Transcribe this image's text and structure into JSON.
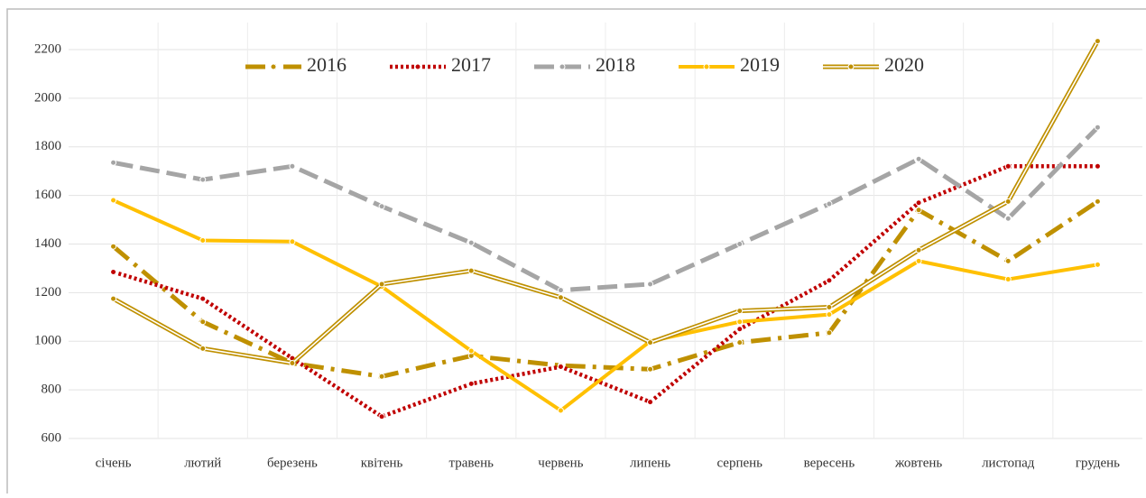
{
  "chart_data": {
    "type": "line",
    "categories": [
      "січень",
      "лютий",
      "березень",
      "квітень",
      "травень",
      "червень",
      "липень",
      "серпень",
      "вересень",
      "жовтень",
      "листопад",
      "грудень"
    ],
    "series": [
      {
        "name": "2016",
        "color": "#bf9000",
        "style": "dashdot",
        "values": [
          1390,
          1080,
          910,
          855,
          940,
          900,
          885,
          995,
          1035,
          1540,
          1330,
          1575
        ]
      },
      {
        "name": "2017",
        "color": "#c00000",
        "style": "dotted",
        "values": [
          1285,
          1175,
          930,
          690,
          825,
          895,
          750,
          1050,
          1250,
          1570,
          1720,
          1720
        ]
      },
      {
        "name": "2018",
        "color": "#a5a5a5",
        "style": "dashed",
        "values": [
          1735,
          1665,
          1720,
          1555,
          1405,
          1210,
          1235,
          1400,
          1565,
          1750,
          1505,
          1880
        ]
      },
      {
        "name": "2019",
        "color": "#ffc000",
        "style": "solid",
        "values": [
          1580,
          1415,
          1410,
          1225,
          960,
          715,
          1000,
          1080,
          1110,
          1330,
          1255,
          1315
        ]
      },
      {
        "name": "2020",
        "color": "#bf9000",
        "style": "double",
        "values": [
          1175,
          970,
          910,
          1235,
          1290,
          1180,
          995,
          1125,
          1140,
          1375,
          1575,
          2235
        ]
      }
    ],
    "ylim": [
      600,
      2200
    ],
    "yticks": [
      600,
      800,
      1000,
      1200,
      1400,
      1600,
      1800,
      2000,
      2200
    ],
    "grid": true,
    "legend": "top"
  }
}
